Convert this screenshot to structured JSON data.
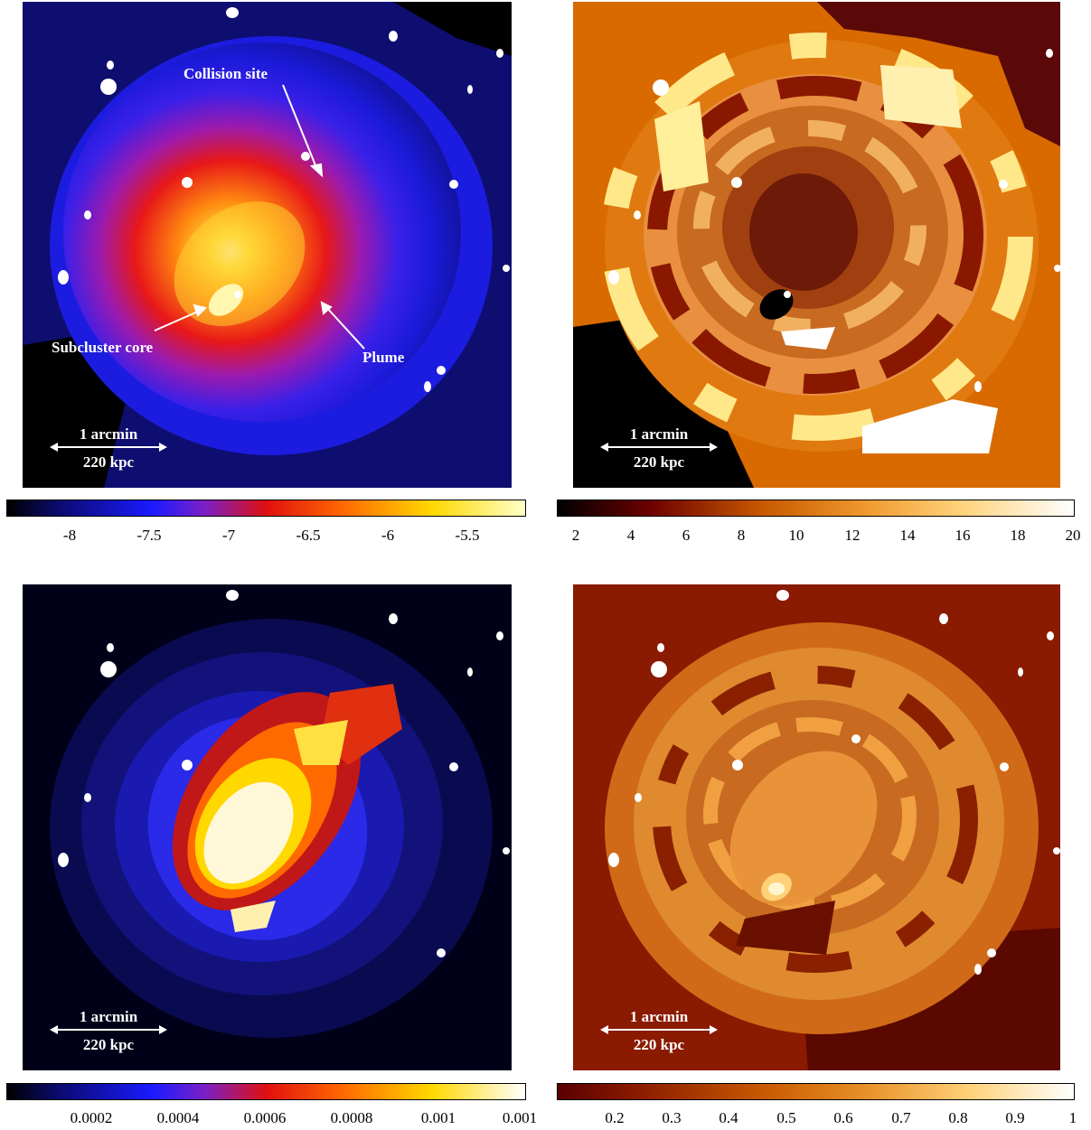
{
  "panels": [
    {
      "id": "surface-brightness",
      "annotations": {
        "collision_site": "Collision site",
        "subcluster_core": "Subcluster core",
        "plume": "Plume"
      },
      "scale_top": "1 arcmin",
      "scale_bottom": "220 kpc",
      "colorbar": {
        "colormap": "blue-red-yellow",
        "colors": [
          "#000000",
          "#0b0b70",
          "#1a1aff",
          "#7a20c8",
          "#e01010",
          "#ff6a00",
          "#ffd800",
          "#ffffc8"
        ],
        "ticks": [
          "-8",
          "-7.5",
          "-7",
          "-6.5",
          "-6",
          "-5.5"
        ]
      }
    },
    {
      "id": "temperature",
      "scale_top": "1 arcmin",
      "scale_bottom": "220 kpc",
      "colorbar": {
        "colormap": "hot",
        "colors": [
          "#000000",
          "#6e0000",
          "#c85a00",
          "#f09a30",
          "#ffd27a",
          "#ffffff"
        ],
        "ticks": [
          "2",
          "4",
          "6",
          "8",
          "10",
          "12",
          "14",
          "16",
          "18",
          "20"
        ]
      }
    },
    {
      "id": "pressure",
      "scale_top": "1 arcmin",
      "scale_bottom": "220 kpc",
      "colorbar": {
        "colormap": "blue-red-yellow",
        "colors": [
          "#000000",
          "#0b0b70",
          "#1a1aff",
          "#7a20c8",
          "#e01010",
          "#ff6a00",
          "#ffd800",
          "#ffffff"
        ],
        "ticks": [
          "0.0002",
          "0.0004",
          "0.0006",
          "0.0008",
          "0.001",
          "0.001"
        ]
      }
    },
    {
      "id": "entropy",
      "scale_top": "1 arcmin",
      "scale_bottom": "220 kpc",
      "colorbar": {
        "colormap": "hot",
        "colors": [
          "#5a0000",
          "#8a1a00",
          "#c85a00",
          "#e8922a",
          "#ffd27a",
          "#ffffff"
        ],
        "ticks": [
          "0.2",
          "0.3",
          "0.4",
          "0.5",
          "0.6",
          "0.7",
          "0.8",
          "0.9",
          "1"
        ]
      }
    }
  ]
}
